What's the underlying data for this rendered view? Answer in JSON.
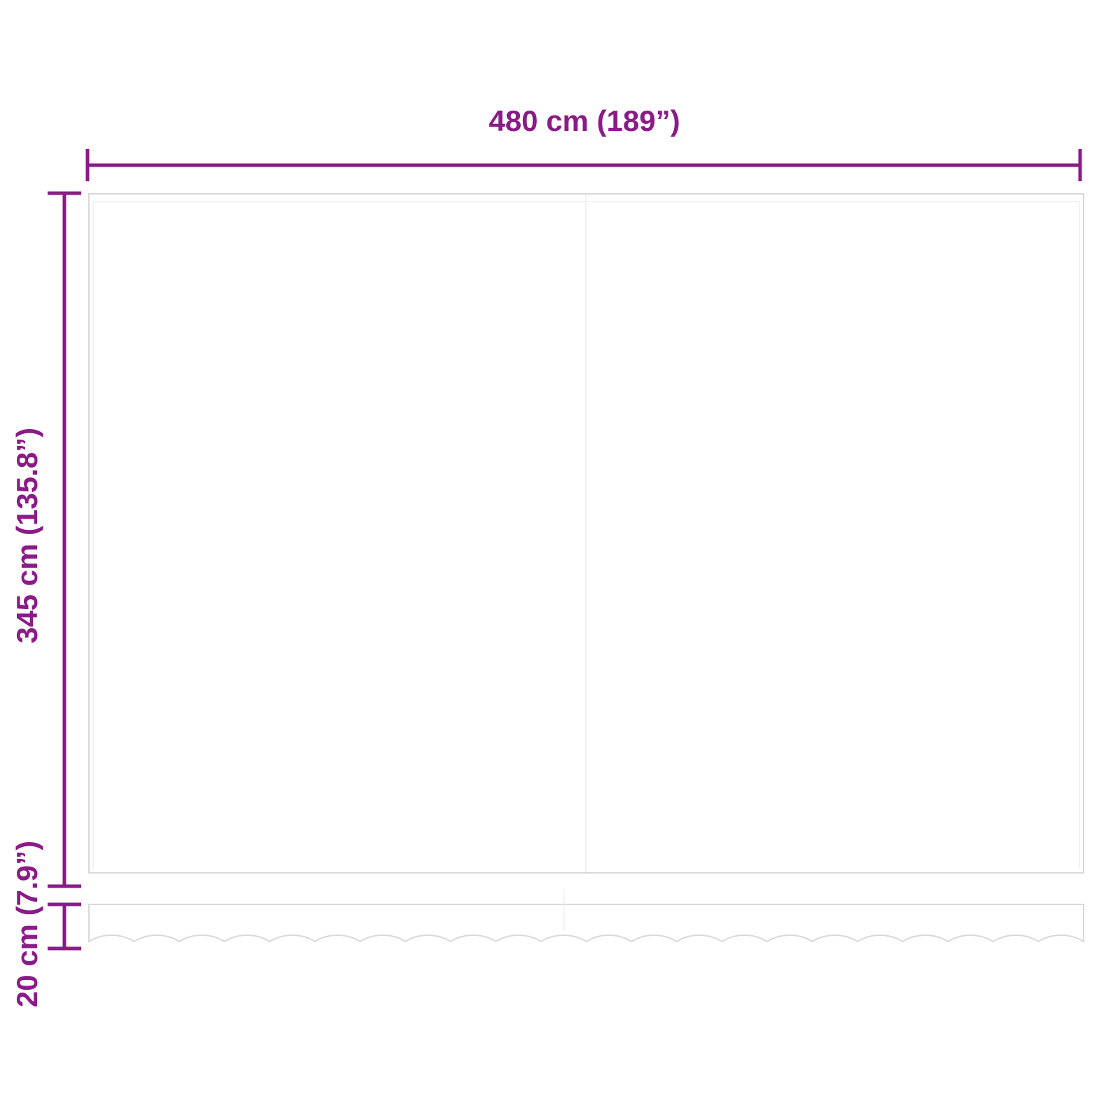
{
  "dimensions": {
    "width": "480 cm (189”)",
    "height": "345 cm (135.8”)",
    "valance": "20 cm (7.9”)"
  }
}
